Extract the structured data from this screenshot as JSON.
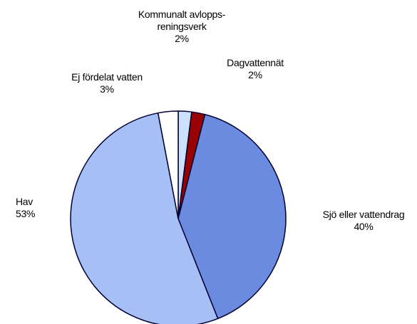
{
  "chart_data": {
    "type": "pie",
    "categories": [
      "Kommunalt avlopps-reningsverk",
      "Dagvattennät",
      "Sjö eller vattendrag",
      "Hav",
      "Ej fördelat vatten"
    ],
    "values": [
      2,
      2,
      40,
      53,
      3
    ],
    "value_labels": [
      "2%",
      "2%",
      "40%",
      "53%",
      "3%"
    ],
    "colors": [
      "#cce0ff",
      "#990000",
      "#6b8be0",
      "#a6bff5",
      "#ffffff"
    ]
  }
}
